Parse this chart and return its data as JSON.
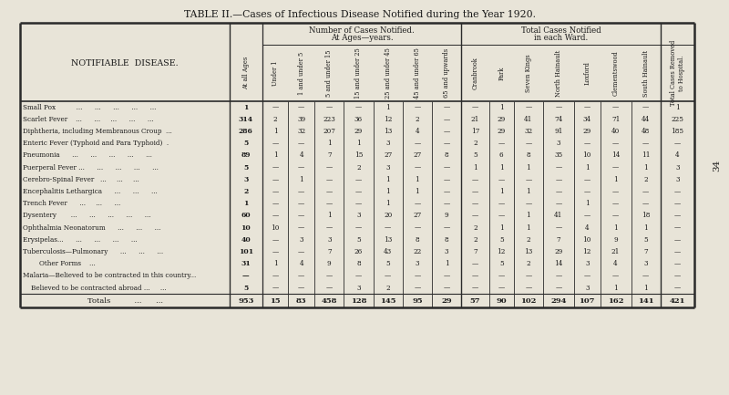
{
  "title": "TABLE II.—Cases of Infectious Disease Notified during the Year 1920.",
  "bg_color": "#e8e4d8",
  "columns": [
    "At all Ages",
    "Under 1",
    "1 and under 5",
    "5 and under 15",
    "15 and under 25",
    "25 and under 45",
    "45 and under 65",
    "65 and upwards",
    "Cranbrook",
    "Park",
    "Seven Kings",
    "North Hainault",
    "Loxford",
    "Clementswood",
    "South Hainault",
    "Total Cases Removed\nto Hospital."
  ],
  "rows": [
    {
      "disease": "Small Pox          ...      ...      ...      ...      ...",
      "data": [
        "1",
        "—",
        "—",
        "—",
        "—",
        "1",
        "—",
        "—",
        "—",
        "1",
        "—",
        "—",
        "—",
        "—",
        "—",
        "1"
      ]
    },
    {
      "disease": "Scarlet Fever    ...      ...     ...      ...      ...",
      "data": [
        "314",
        "2",
        "39",
        "223",
        "36",
        "12",
        "2",
        "—",
        "21",
        "29",
        "41",
        "74",
        "34",
        "71",
        "44",
        "225"
      ]
    },
    {
      "disease": "Diphtheria, including Membranous Croup  ...",
      "data": [
        "286",
        "1",
        "32",
        "207",
        "29",
        "13",
        "4",
        "—",
        "17",
        "29",
        "32",
        "91",
        "29",
        "40",
        "48",
        "185"
      ]
    },
    {
      "disease": "Enteric Fever (Typhoid and Para Typhoid)  .",
      "data": [
        "5",
        "—",
        "—",
        "1",
        "1",
        "3",
        "—",
        "—",
        "2",
        "—",
        "—",
        "3",
        "—",
        "—",
        "—",
        "—"
      ]
    },
    {
      "disease": "Pneumonia      ...      ...      ...      ...      ...",
      "data": [
        "89",
        "1",
        "4",
        "7",
        "15",
        "27",
        "27",
        "8",
        "5",
        "6",
        "8",
        "35",
        "10",
        "14",
        "11",
        "4"
      ]
    },
    {
      "disease": "Puerperal Fever ...      ...      ...      ...      ...",
      "data": [
        "5",
        "—",
        "—",
        "—",
        "2",
        "3",
        "—",
        "—",
        "1",
        "1",
        "1",
        "—",
        "1",
        "—",
        "1",
        "3"
      ]
    },
    {
      "disease": "Cerebro-Spinal Fever   ...     ...     ...",
      "data": [
        "3",
        "—",
        "1",
        "—",
        "—",
        "1",
        "1",
        "—",
        "—",
        "—",
        "—",
        "—",
        "—",
        "1",
        "2",
        "3"
      ]
    },
    {
      "disease": "Encephalitis Lethargica      ...      ...      ...",
      "data": [
        "2",
        "—",
        "—",
        "—",
        "—",
        "1",
        "1",
        "—",
        "—",
        "1",
        "1",
        "—",
        "—",
        "—",
        "—",
        "—"
      ]
    },
    {
      "disease": "Trench Fever      ...     ...      ...",
      "data": [
        "1",
        "—",
        "—",
        "—",
        "—",
        "1",
        "—",
        "—",
        "—",
        "—",
        "—",
        "—",
        "1",
        "—",
        "—",
        "—"
      ]
    },
    {
      "disease": "Dysentery       ...      ...      ...      ...      ...",
      "data": [
        "60",
        "—",
        "—",
        "1",
        "3",
        "20",
        "27",
        "9",
        "—",
        "—",
        "1",
        "41",
        "—",
        "—",
        "18",
        "—"
      ]
    },
    {
      "disease": "Ophthalmia Neonatorum      ...      ...      ...",
      "data": [
        "10",
        "10",
        "—",
        "—",
        "—",
        "—",
        "—",
        "—",
        "2",
        "1",
        "1",
        "—",
        "4",
        "1",
        "1",
        "—"
      ]
    },
    {
      "disease": "Erysipelas...      ...      ...      ...      ...",
      "data": [
        "40",
        "—",
        "3",
        "3",
        "5",
        "13",
        "8",
        "8",
        "2",
        "5",
        "2",
        "7",
        "10",
        "9",
        "5",
        "—"
      ]
    },
    {
      "disease": "Tuberculosis—Pulmonary      ...      ...      ...",
      "data": [
        "101",
        "—",
        "—",
        "7",
        "26",
        "43",
        "22",
        "3",
        "7",
        "12",
        "13",
        "29",
        "12",
        "21",
        "7",
        "—"
      ]
    },
    {
      "disease": "        Other Forms    ...",
      "data": [
        "31",
        "1",
        "4",
        "9",
        "8",
        "5",
        "3",
        "1",
        "—",
        "5",
        "2",
        "14",
        "3",
        "4",
        "3",
        "—"
      ]
    },
    {
      "disease": "Malaria—Believed to be contracted in this country...",
      "data": [
        "—",
        "—",
        "—",
        "—",
        "—",
        "—",
        "—",
        "—",
        "—",
        "—",
        "—",
        "—",
        "—",
        "—",
        "—",
        "—"
      ]
    },
    {
      "disease": "    Believed to be contracted abroad ...     ...",
      "data": [
        "5",
        "—",
        "—",
        "—",
        "3",
        "2",
        "—",
        "—",
        "—",
        "—",
        "—",
        "—",
        "3",
        "1",
        "1",
        "—"
      ]
    }
  ],
  "totals": [
    "953",
    "15",
    "83",
    "458",
    "128",
    "145",
    "95",
    "29",
    "57",
    "90",
    "102",
    "294",
    "107",
    "162",
    "141",
    "421"
  ],
  "page_number": "34"
}
